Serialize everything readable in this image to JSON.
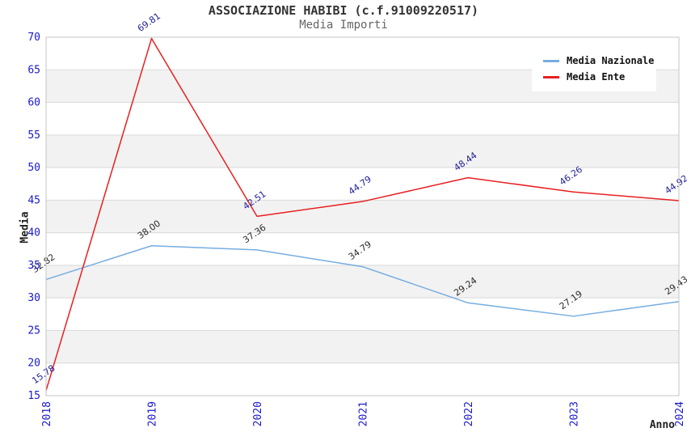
{
  "chart_data": {
    "type": "line",
    "title": "ASSOCIAZIONE HABIBI (c.f.91009220517)",
    "subtitle": "Media Importi",
    "xlabel": "Anno",
    "ylabel": "Media",
    "categories": [
      "2018",
      "2019",
      "2020",
      "2021",
      "2022",
      "2023",
      "2024"
    ],
    "series": [
      {
        "name": "Media Nazionale",
        "color": "#76ade0",
        "label_color": "#2b2b2b",
        "values": [
          32.82,
          38.0,
          37.36,
          34.79,
          29.24,
          27.19,
          29.43
        ]
      },
      {
        "name": "Media Ente",
        "color": "#e82020",
        "label_color": "#222299",
        "values": [
          15.78,
          69.81,
          42.51,
          44.79,
          48.44,
          46.26,
          44.92
        ]
      }
    ],
    "ylim": [
      15,
      70
    ],
    "yticks": [
      15,
      20,
      25,
      30,
      35,
      40,
      45,
      50,
      55,
      60,
      65,
      70
    ],
    "grid": true,
    "legend_position": "top-right",
    "tick_label_color": "#1a1acc",
    "value_label_decimals": 2
  }
}
